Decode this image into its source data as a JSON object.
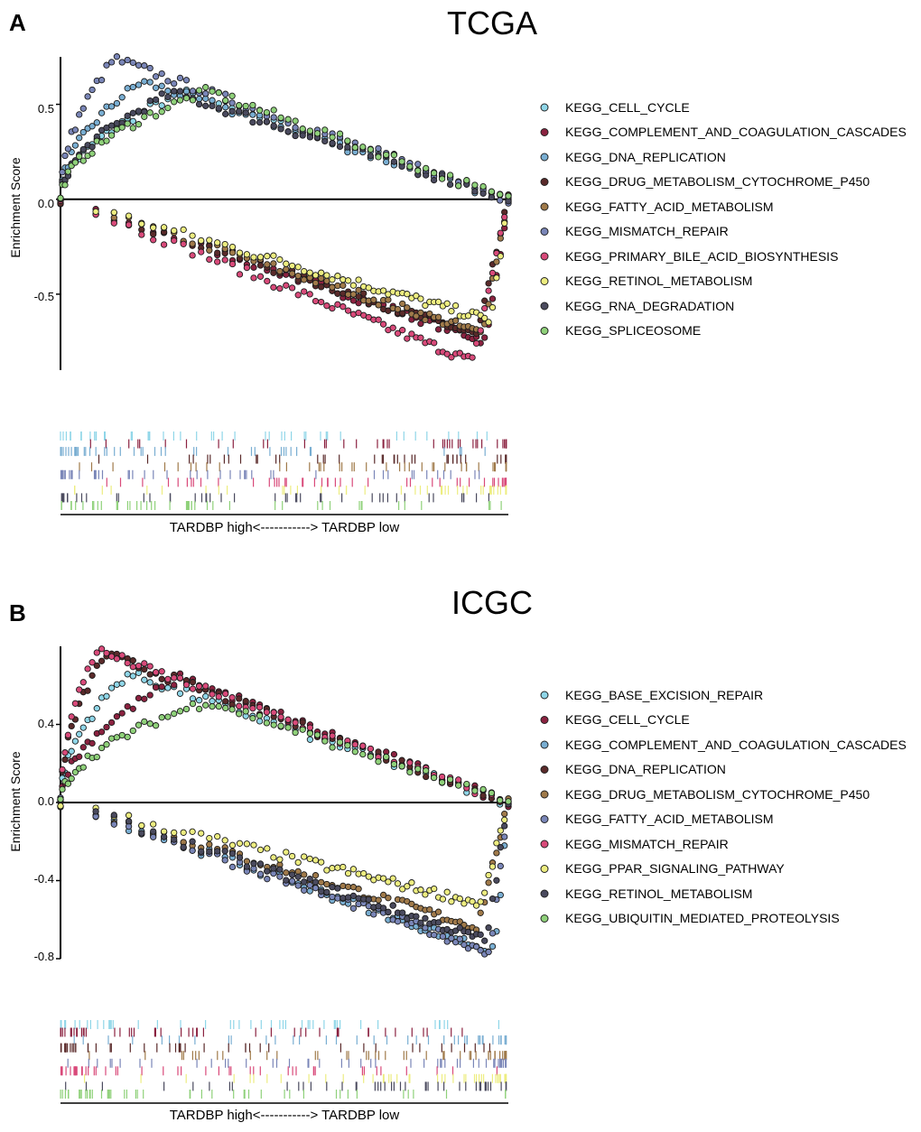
{
  "panels": [
    {
      "letter": "A",
      "title": "TCGA",
      "ylabel": "Enrichment Score",
      "ylim": [
        -0.9,
        0.75
      ],
      "yticks": [
        0.5,
        0.0,
        -0.5
      ],
      "ytick_labels": [
        "0.5",
        "0.0",
        "-0.5"
      ],
      "xlabel": "TARDBP high<-----------> TARDBP low",
      "legend": [
        {
          "name": "KEGG_CELL_CYCLE",
          "color": "#8fd6e8"
        },
        {
          "name": "KEGG_COMPLEMENT_AND_COAGULATION_CASCADES",
          "color": "#8b2240"
        },
        {
          "name": "KEGG_DNA_REPLICATION",
          "color": "#79aed2"
        },
        {
          "name": "KEGG_DRUG_METABOLISM_CYTOCHROME_P450",
          "color": "#5a2a2a"
        },
        {
          "name": "KEGG_FATTY_ACID_METABOLISM",
          "color": "#a07a4a"
        },
        {
          "name": "KEGG_MISMATCH_REPAIR",
          "color": "#7a86b8"
        },
        {
          "name": "KEGG_PRIMARY_BILE_ACID_BIOSYNTHESIS",
          "color": "#d94a7a"
        },
        {
          "name": "KEGG_RETINOL_METABOLISM",
          "color": "#eded80"
        },
        {
          "name": "KEGG_RNA_DEGRADATION",
          "color": "#4a4a5e"
        },
        {
          "name": "KEGG_SPLICEOSOME",
          "color": "#8fd17a"
        }
      ]
    },
    {
      "letter": "B",
      "title": "ICGC",
      "ylabel": "Enrichment Score",
      "ylim": [
        -0.8,
        0.8
      ],
      "yticks": [
        0.4,
        0.0,
        -0.4,
        -0.8
      ],
      "ytick_labels": [
        "0.4",
        "0.0",
        "-0.4",
        "-0.8"
      ],
      "xlabel": "TARDBP high<-----------> TARDBP low",
      "legend": [
        {
          "name": "KEGG_BASE_EXCISION_REPAIR",
          "color": "#8fd6e8"
        },
        {
          "name": "KEGG_CELL_CYCLE",
          "color": "#8b2240"
        },
        {
          "name": "KEGG_COMPLEMENT_AND_COAGULATION_CASCADES",
          "color": "#79aed2"
        },
        {
          "name": "KEGG_DNA_REPLICATION",
          "color": "#5a2a2a"
        },
        {
          "name": "KEGG_DRUG_METABOLISM_CYTOCHROME_P450",
          "color": "#a07a4a"
        },
        {
          "name": "KEGG_FATTY_ACID_METABOLISM",
          "color": "#7a86b8"
        },
        {
          "name": "KEGG_MISMATCH_REPAIR",
          "color": "#d94a7a"
        },
        {
          "name": "KEGG_PPAR_SIGNALING_PATHWAY",
          "color": "#eded80"
        },
        {
          "name": "KEGG_RETINOL_METABOLISM",
          "color": "#4a4a5e"
        },
        {
          "name": "KEGG_UBIQUITIN_MEDIATED_PROTEOLYSIS",
          "color": "#8fd17a"
        }
      ]
    }
  ],
  "chart_data": [
    {
      "type": "scatter",
      "title": "TCGA",
      "xlabel": "TARDBP high<-----------> TARDBP low",
      "ylabel": "Enrichment Score",
      "ylim": [
        -0.9,
        0.75
      ],
      "xlim": [
        0,
        1
      ],
      "series": [
        {
          "name": "KEGG_CELL_CYCLE",
          "peak_x": 0.28,
          "peak_es": 0.57
        },
        {
          "name": "KEGG_COMPLEMENT_AND_COAGULATION_CASCADES",
          "peak_x": 0.95,
          "peak_es": -0.76
        },
        {
          "name": "KEGG_DNA_REPLICATION",
          "peak_x": 0.18,
          "peak_es": 0.62
        },
        {
          "name": "KEGG_DRUG_METABOLISM_CYTOCHROME_P450",
          "peak_x": 0.93,
          "peak_es": -0.73
        },
        {
          "name": "KEGG_FATTY_ACID_METABOLISM",
          "peak_x": 0.94,
          "peak_es": -0.72
        },
        {
          "name": "KEGG_MISMATCH_REPAIR",
          "peak_x": 0.12,
          "peak_es": 0.74
        },
        {
          "name": "KEGG_PRIMARY_BILE_ACID_BIOSYNTHESIS",
          "peak_x": 0.92,
          "peak_es": -0.87
        },
        {
          "name": "KEGG_RETINOL_METABOLISM",
          "peak_x": 0.96,
          "peak_es": -0.65
        },
        {
          "name": "KEGG_RNA_DEGRADATION",
          "peak_x": 0.25,
          "peak_es": 0.56
        },
        {
          "name": "KEGG_SPLICEOSOME",
          "peak_x": 0.33,
          "peak_es": 0.57
        }
      ]
    },
    {
      "type": "scatter",
      "title": "ICGC",
      "xlabel": "TARDBP high<-----------> TARDBP low",
      "ylabel": "Enrichment Score",
      "ylim": [
        -0.8,
        0.8
      ],
      "xlim": [
        0,
        1
      ],
      "series": [
        {
          "name": "KEGG_BASE_EXCISION_REPAIR",
          "peak_x": 0.15,
          "peak_es": 0.66
        },
        {
          "name": "KEGG_CELL_CYCLE",
          "peak_x": 0.27,
          "peak_es": 0.64
        },
        {
          "name": "KEGG_COMPLEMENT_AND_COAGULATION_CASCADES",
          "peak_x": 0.97,
          "peak_es": -0.78
        },
        {
          "name": "KEGG_DNA_REPLICATION",
          "peak_x": 0.1,
          "peak_es": 0.76
        },
        {
          "name": "KEGG_DRUG_METABOLISM_CYTOCHROME_P450",
          "peak_x": 0.93,
          "peak_es": -0.65
        },
        {
          "name": "KEGG_FATTY_ACID_METABOLISM",
          "peak_x": 0.96,
          "peak_es": -0.78
        },
        {
          "name": "KEGG_MISMATCH_REPAIR",
          "peak_x": 0.08,
          "peak_es": 0.78
        },
        {
          "name": "KEGG_PPAR_SIGNALING_PATHWAY",
          "peak_x": 0.94,
          "peak_es": -0.53
        },
        {
          "name": "KEGG_RETINOL_METABOLISM",
          "peak_x": 0.95,
          "peak_es": -0.72
        },
        {
          "name": "KEGG_UBIQUITIN_MEDIATED_PROTEOLYSIS",
          "peak_x": 0.33,
          "peak_es": 0.52
        }
      ]
    }
  ]
}
